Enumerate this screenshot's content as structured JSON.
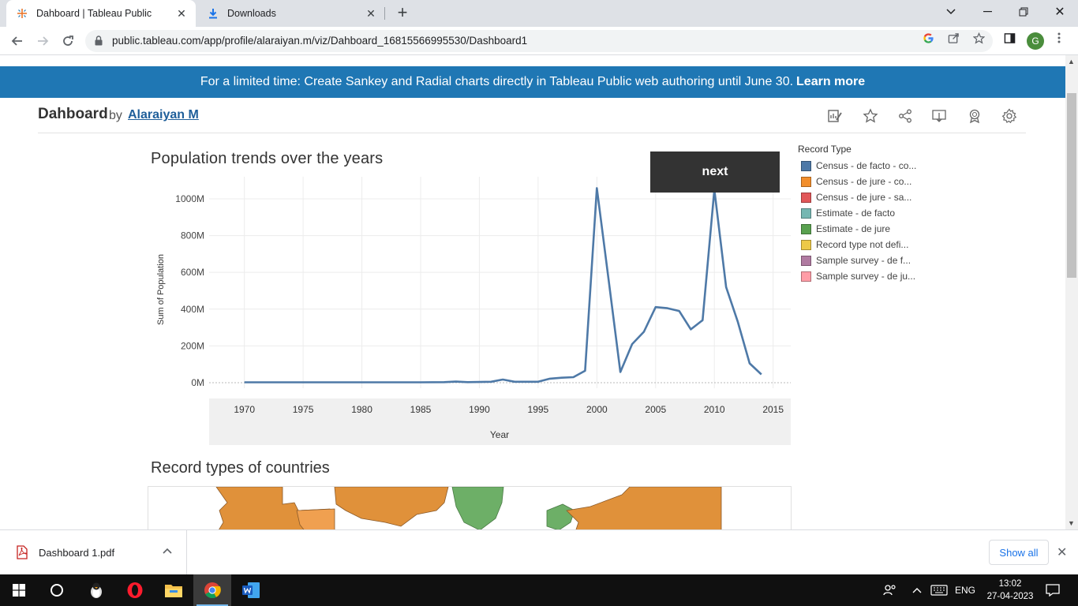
{
  "browser": {
    "tabs": [
      {
        "title": "Dahboard | Tableau Public",
        "active": true
      },
      {
        "title": "Downloads",
        "active": false
      }
    ],
    "url": "public.tableau.com/app/profile/alaraiyan.m/viz/Dahboard_16815566995530/Dashboard1",
    "profile_initial": "G"
  },
  "banner": {
    "text": "For a limited time: Create Sankey and Radial charts directly in Tableau Public web authoring until June 30.",
    "link": "Learn more"
  },
  "viz": {
    "title": "Dahboard",
    "by": "by",
    "author": "Alaraiyan M"
  },
  "dashboard": {
    "chart_title": "Population trends over the years",
    "next_label": "next",
    "map_title": "Record types of countries",
    "legend_title": "Record Type",
    "legend": [
      {
        "label": "Census - de facto - co...",
        "color": "#4e79a7"
      },
      {
        "label": "Census - de jure - co...",
        "color": "#f28e2b"
      },
      {
        "label": "Census - de jure - sa...",
        "color": "#e15759"
      },
      {
        "label": "Estimate - de facto",
        "color": "#76b7b2"
      },
      {
        "label": "Estimate - de jure",
        "color": "#59a14f"
      },
      {
        "label": "Record type not defi...",
        "color": "#edc948"
      },
      {
        "label": "Sample survey - de f...",
        "color": "#b07aa1"
      },
      {
        "label": "Sample survey - de ju...",
        "color": "#ff9da7"
      }
    ]
  },
  "chart_data": {
    "type": "line",
    "title": "Population trends over the years",
    "xlabel": "Year",
    "ylabel": "Sum of Population",
    "x_ticks": [
      1970,
      1975,
      1980,
      1985,
      1990,
      1995,
      2000,
      2005,
      2010,
      2015
    ],
    "y_ticks": [
      0,
      200,
      400,
      600,
      800,
      1000
    ],
    "y_tick_labels": [
      "0M",
      "200M",
      "400M",
      "600M",
      "800M",
      "1000M"
    ],
    "xlim": [
      1967,
      2016.5
    ],
    "ylim": [
      -30,
      1120
    ],
    "series_color": "#4e79a7",
    "x": [
      1970,
      1975,
      1980,
      1985,
      1987,
      1988,
      1989,
      1990,
      1991,
      1992,
      1993,
      1994,
      1995,
      1996,
      1997,
      1998,
      1999,
      2000,
      2001,
      2002,
      2003,
      2004,
      2005,
      2006,
      2007,
      2008,
      2009,
      2010,
      2011,
      2012,
      2013,
      2014
    ],
    "y": [
      2,
      2,
      2,
      2,
      3,
      6,
      3,
      4,
      5,
      17,
      5,
      5,
      5,
      22,
      27,
      30,
      65,
      1058,
      560,
      58,
      210,
      277,
      411,
      405,
      390,
      290,
      340,
      1050,
      520,
      330,
      105,
      45
    ]
  },
  "download": {
    "filename": "Dashboard 1.pdf",
    "show_all": "Show all"
  },
  "taskbar": {
    "lang": "ENG",
    "time": "13:02",
    "date": "27-04-2023"
  }
}
